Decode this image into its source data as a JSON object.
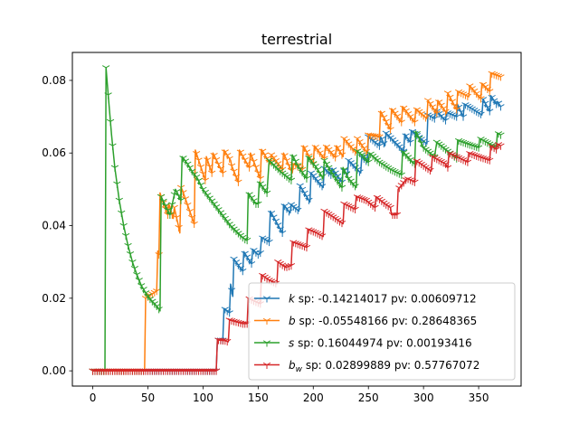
{
  "chart_data": {
    "type": "line",
    "title": "terrestrial",
    "xlabel": "",
    "ylabel": "",
    "xlim": [
      -18.5,
      388.5
    ],
    "ylim": [
      -0.0042,
      0.0877
    ],
    "xticks": [
      "0",
      "50",
      "100",
      "150",
      "200",
      "250",
      "300",
      "350"
    ],
    "yticks": [
      "0.00",
      "0.02",
      "0.04",
      "0.06",
      "0.08"
    ],
    "grid": false,
    "legend_position": "lower-right",
    "marker": "tri-down",
    "series": [
      {
        "id": "k",
        "symbol": "k",
        "subscript": "",
        "stats": " sp: -0.14214017 pv: 0.00609712",
        "color": "#1f77b4",
        "onset": 112,
        "x": [
          0,
          111,
          112,
          113,
          118,
          119,
          124,
          125,
          127,
          128,
          136,
          137,
          144,
          145,
          150,
          151,
          152,
          153,
          160,
          161,
          172,
          173,
          179,
          180,
          187,
          188,
          197,
          198,
          209,
          210,
          216,
          217,
          226,
          227,
          231,
          232,
          243,
          244,
          249,
          250,
          260,
          261,
          265,
          266,
          282,
          283,
          288,
          289,
          303,
          304,
          310,
          311,
          320,
          321,
          330,
          331,
          336,
          337,
          353,
          354,
          360,
          361,
          366,
          367,
          370
        ],
        "y": [
          0,
          0,
          0,
          0.0085,
          0.0085,
          0.0172,
          0.016,
          0.0239,
          0.0205,
          0.0308,
          0.0275,
          0.0328,
          0.0295,
          0.0335,
          0.032,
          0.0322,
          0.0325,
          0.0368,
          0.0355,
          0.044,
          0.038,
          0.0458,
          0.0435,
          0.0458,
          0.044,
          0.051,
          0.0465,
          0.0545,
          0.0505,
          0.0558,
          0.054,
          0.0558,
          0.052,
          0.0555,
          0.054,
          0.058,
          0.0545,
          0.059,
          0.0575,
          0.0645,
          0.062,
          0.0645,
          0.062,
          0.0655,
          0.0605,
          0.0652,
          0.063,
          0.0662,
          0.0625,
          0.0705,
          0.0695,
          0.0718,
          0.069,
          0.0712,
          0.07,
          0.0733,
          0.07,
          0.0735,
          0.0705,
          0.0748,
          0.0715,
          0.0758,
          0.0735,
          0.0742,
          0.0728
        ]
      },
      {
        "id": "b",
        "symbol": "b",
        "subscript": "",
        "stats": " sp: -0.05548166 pv: 0.28648365",
        "color": "#ff7f0e",
        "onset": 47,
        "x": [
          0,
          46,
          47,
          48,
          58,
          59,
          60,
          61,
          62,
          68,
          69,
          73,
          74,
          78,
          79,
          80,
          81,
          92,
          93,
          102,
          103,
          108,
          109,
          118,
          119,
          125,
          126,
          132,
          133,
          142,
          143,
          152,
          153,
          161,
          162,
          172,
          173,
          181,
          182,
          190,
          191,
          200,
          201,
          210,
          211,
          220,
          221,
          227,
          228,
          239,
          240,
          249,
          250,
          260,
          261,
          270,
          271,
          280,
          281,
          292,
          293,
          303,
          304,
          312,
          313,
          321,
          322,
          330,
          331,
          341,
          342,
          352,
          353,
          360,
          361,
          370
        ],
        "y": [
          0,
          0,
          0,
          0.02,
          0.022,
          0.033,
          0.032,
          0.049,
          0.048,
          0.043,
          0.046,
          0.042,
          0.045,
          0.0395,
          0.038,
          0.0505,
          0.05,
          0.0405,
          0.0608,
          0.0525,
          0.059,
          0.0545,
          0.06,
          0.0545,
          0.0608,
          0.058,
          0.0565,
          0.052,
          0.0608,
          0.056,
          0.06,
          0.053,
          0.061,
          0.057,
          0.0595,
          0.0555,
          0.06,
          0.0545,
          0.057,
          0.0555,
          0.062,
          0.057,
          0.062,
          0.0585,
          0.062,
          0.0588,
          0.062,
          0.059,
          0.064,
          0.06,
          0.064,
          0.06,
          0.065,
          0.0645,
          0.0715,
          0.0665,
          0.0722,
          0.0685,
          0.0728,
          0.0685,
          0.0722,
          0.0695,
          0.0745,
          0.071,
          0.0745,
          0.071,
          0.0765,
          0.072,
          0.077,
          0.0755,
          0.0785,
          0.075,
          0.0792,
          0.077,
          0.082,
          0.081
        ]
      },
      {
        "id": "s",
        "symbol": "s",
        "subscript": "",
        "stats": " sp: 0.16044974 pv: 0.00193416",
        "color": "#2ca02c",
        "onset": 11,
        "x": [
          0,
          10,
          11,
          12,
          14,
          17,
          20,
          24,
          28,
          32,
          36,
          40,
          44,
          48,
          52,
          56,
          59,
          60,
          61,
          62,
          66,
          70,
          75,
          80,
          81,
          86,
          90,
          95,
          100,
          105,
          110,
          115,
          120,
          125,
          130,
          135,
          139,
          140,
          141,
          148,
          150,
          151,
          158,
          160,
          165,
          170,
          178,
          180,
          181,
          187,
          194,
          195,
          203,
          209,
          210,
          216,
          226,
          227,
          232,
          239,
          240,
          246,
          250,
          251,
          260,
          270,
          280,
          281,
          290,
          292,
          293,
          300,
          310,
          312,
          320,
          330,
          331,
          340,
          350,
          351,
          360,
          366,
          367,
          370
        ],
        "y": [
          0,
          0,
          0,
          0.0835,
          0.076,
          0.065,
          0.056,
          0.047,
          0.04,
          0.0345,
          0.03,
          0.0265,
          0.0235,
          0.0215,
          0.0198,
          0.0185,
          0.0175,
          0.017,
          0.0165,
          0.048,
          0.0455,
          0.043,
          0.05,
          0.047,
          0.059,
          0.057,
          0.055,
          0.053,
          0.05,
          0.048,
          0.046,
          0.044,
          0.042,
          0.04,
          0.0385,
          0.037,
          0.036,
          0.036,
          0.049,
          0.046,
          0.046,
          0.052,
          0.049,
          0.058,
          0.0565,
          0.055,
          0.053,
          0.0525,
          0.0595,
          0.056,
          0.053,
          0.059,
          0.056,
          0.053,
          0.058,
          0.055,
          0.0505,
          0.056,
          0.053,
          0.0505,
          0.0605,
          0.059,
          0.0575,
          0.06,
          0.0575,
          0.0555,
          0.054,
          0.0605,
          0.0575,
          0.057,
          0.066,
          0.0615,
          0.059,
          0.063,
          0.061,
          0.0585,
          0.0635,
          0.0625,
          0.0615,
          0.064,
          0.0625,
          0.0615,
          0.0655,
          0.065
        ]
      },
      {
        "id": "bw",
        "symbol": "b",
        "subscript": "w",
        "stats": " sp: 0.02899889 pv: 0.57767072",
        "color": "#d62728",
        "onset": 112,
        "x": [
          0,
          111,
          112,
          113,
          120,
          123,
          124,
          130,
          136,
          140,
          141,
          148,
          152,
          153,
          160,
          167,
          168,
          175,
          180,
          181,
          190,
          194,
          195,
          203,
          209,
          210,
          220,
          227,
          228,
          238,
          239,
          248,
          256,
          257,
          265,
          270,
          271,
          276,
          277,
          285,
          292,
          293,
          300,
          307,
          308,
          320,
          322,
          323,
          330,
          340,
          341,
          350,
          360,
          361,
          366,
          367,
          370
        ],
        "y": [
          0,
          0,
          0,
          0.0085,
          0.0083,
          0.008,
          0.014,
          0.0135,
          0.013,
          0.013,
          0.02,
          0.019,
          0.0185,
          0.0265,
          0.025,
          0.024,
          0.03,
          0.0285,
          0.029,
          0.0355,
          0.0345,
          0.034,
          0.039,
          0.038,
          0.037,
          0.044,
          0.042,
          0.0405,
          0.046,
          0.0445,
          0.048,
          0.047,
          0.045,
          0.048,
          0.046,
          0.045,
          0.043,
          0.043,
          0.05,
          0.053,
          0.052,
          0.058,
          0.0565,
          0.055,
          0.059,
          0.057,
          0.056,
          0.06,
          0.059,
          0.0575,
          0.06,
          0.059,
          0.058,
          0.062,
          0.061,
          0.0625,
          0.062
        ]
      }
    ]
  }
}
